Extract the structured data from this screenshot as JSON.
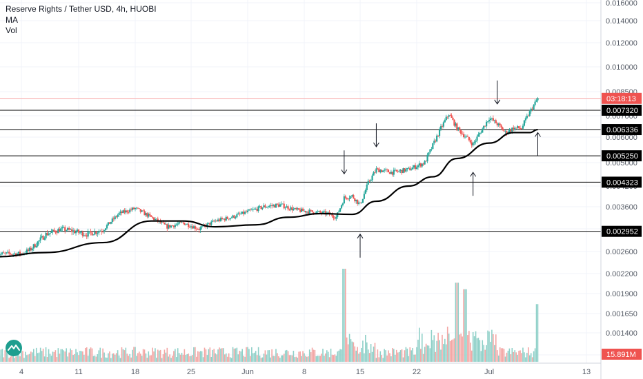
{
  "legend": {
    "title": "Reserve Rights / Tether USD, 4h, HUOBI",
    "ma_label": "MA",
    "vol_label": "Vol"
  },
  "colors": {
    "up": "#26a69a",
    "down": "#ef5350",
    "vol_up": "#8fd0c8",
    "vol_down": "#f3a6a4",
    "ma": "#000000",
    "level_line": "#000000",
    "price_line": "#f7a6a6",
    "badge": "#000000",
    "price_badge": "#ef5350",
    "grid": "#f0f3fa",
    "axis_text": "#555b66",
    "logo_bg": "#1e9e8f"
  },
  "icons": {
    "logo": "tradingview-logo-icon",
    "arrow_down": "arrow-down-icon",
    "arrow_up": "arrow-up-icon"
  },
  "chart_data": {
    "type": "candlestick",
    "title": "Reserve Rights / Tether USD, 4h, HUOBI",
    "x_ticks": [
      "4",
      "11",
      "18",
      "25",
      "Jun",
      "8",
      "15",
      "22",
      "Jul",
      "13"
    ],
    "y_ticks": [
      "0.016000",
      "0.014000",
      "0.012000",
      "0.010000",
      "0.008500",
      "0.007000",
      "0.006000",
      "0.005000",
      "0.004200",
      "0.003600",
      "0.003000",
      "0.002600",
      "0.002200",
      "0.001900",
      "0.001650",
      "0.001400",
      "0.001200"
    ],
    "y_range": [
      0.00115,
      0.0166
    ],
    "y_scale": "log",
    "price_levels": [
      "0.007320",
      "0.006336",
      "0.005250",
      "0.004323",
      "0.002952"
    ],
    "countdown": "03:18:13",
    "current_price": 0.00805,
    "ma_value": "0.006336",
    "volume_label": "15.891M",
    "price_path": [
      {
        "date": "May 1",
        "price": 0.00255
      },
      {
        "date": "May 4",
        "price": 0.00256
      },
      {
        "date": "May 5",
        "price": 0.00262
      },
      {
        "date": "May 7",
        "price": 0.0029
      },
      {
        "date": "May 9",
        "price": 0.003
      },
      {
        "date": "May 12",
        "price": 0.0029
      },
      {
        "date": "May 14",
        "price": 0.00298
      },
      {
        "date": "May 16",
        "price": 0.0034
      },
      {
        "date": "May 18",
        "price": 0.00355
      },
      {
        "date": "May 20",
        "price": 0.0033
      },
      {
        "date": "May 22",
        "price": 0.00305
      },
      {
        "date": "May 24",
        "price": 0.00315
      },
      {
        "date": "May 26",
        "price": 0.003
      },
      {
        "date": "May 28",
        "price": 0.0032
      },
      {
        "date": "May 30",
        "price": 0.0033
      },
      {
        "date": "Jun 1",
        "price": 0.00345
      },
      {
        "date": "Jun 3",
        "price": 0.0036
      },
      {
        "date": "Jun 5",
        "price": 0.00365
      },
      {
        "date": "Jun 7",
        "price": 0.0035
      },
      {
        "date": "Jun 9",
        "price": 0.00345
      },
      {
        "date": "Jun 11",
        "price": 0.0034
      },
      {
        "date": "Jun 12",
        "price": 0.0033
      },
      {
        "date": "Jun 13",
        "price": 0.00385
      },
      {
        "date": "Jun 14",
        "price": 0.0039
      },
      {
        "date": "Jun 15",
        "price": 0.00365
      },
      {
        "date": "Jun 16",
        "price": 0.0043
      },
      {
        "date": "Jun 17",
        "price": 0.00475
      },
      {
        "date": "Jun 19",
        "price": 0.00465
      },
      {
        "date": "Jun 21",
        "price": 0.00475
      },
      {
        "date": "Jun 23",
        "price": 0.005
      },
      {
        "date": "Jun 25",
        "price": 0.0064
      },
      {
        "date": "Jun 26",
        "price": 0.0071
      },
      {
        "date": "Jun 27",
        "price": 0.0064
      },
      {
        "date": "Jun 29",
        "price": 0.0057
      },
      {
        "date": "Jul 1",
        "price": 0.0069
      },
      {
        "date": "Jul 2",
        "price": 0.0066
      },
      {
        "date": "Jul 3",
        "price": 0.0062
      },
      {
        "date": "Jul 4",
        "price": 0.0064
      },
      {
        "date": "Jul 5",
        "price": 0.0064
      },
      {
        "date": "Jul 6",
        "price": 0.0072
      },
      {
        "date": "Jul 7",
        "price": 0.00805
      }
    ],
    "ma_path": [
      {
        "date": "May 1",
        "value": 0.0025
      },
      {
        "date": "May 7",
        "value": 0.00258
      },
      {
        "date": "May 14",
        "value": 0.00275
      },
      {
        "date": "May 20",
        "value": 0.0032
      },
      {
        "date": "May 24",
        "value": 0.0032
      },
      {
        "date": "May 28",
        "value": 0.00305
      },
      {
        "date": "Jun 2",
        "value": 0.0031
      },
      {
        "date": "Jun 6",
        "value": 0.0033
      },
      {
        "date": "Jun 10",
        "value": 0.0034
      },
      {
        "date": "Jun 14",
        "value": 0.00338
      },
      {
        "date": "Jun 17",
        "value": 0.00375
      },
      {
        "date": "Jun 21",
        "value": 0.0042
      },
      {
        "date": "Jun 24",
        "value": 0.0045
      },
      {
        "date": "Jun 27",
        "value": 0.00515
      },
      {
        "date": "Jul 1",
        "value": 0.00575
      },
      {
        "date": "Jul 4",
        "value": 0.0062
      },
      {
        "date": "Jul 6",
        "value": 0.0062
      },
      {
        "date": "Jul 7",
        "value": 0.006336
      }
    ],
    "volume_spikes": [
      {
        "date": "Jun 13",
        "level": 1.0
      },
      {
        "date": "Jun 27",
        "level": 0.85
      },
      {
        "date": "Jun 28",
        "level": 0.78
      },
      {
        "date": "Jul 7",
        "level": 0.62
      }
    ],
    "annotations": [
      {
        "type": "arrow_down",
        "date": "Jun 13",
        "price": 0.0046
      },
      {
        "type": "arrow_down",
        "date": "Jun 17",
        "price": 0.0056
      },
      {
        "type": "arrow_down",
        "date": "Jul 2",
        "price": 0.0077
      },
      {
        "type": "arrow_up",
        "date": "Jun 15",
        "price": 0.0029
      },
      {
        "type": "arrow_up",
        "date": "Jun 29",
        "price": 0.00465
      },
      {
        "type": "arrow_up",
        "date": "Jul 7",
        "price": 0.0062
      }
    ]
  }
}
